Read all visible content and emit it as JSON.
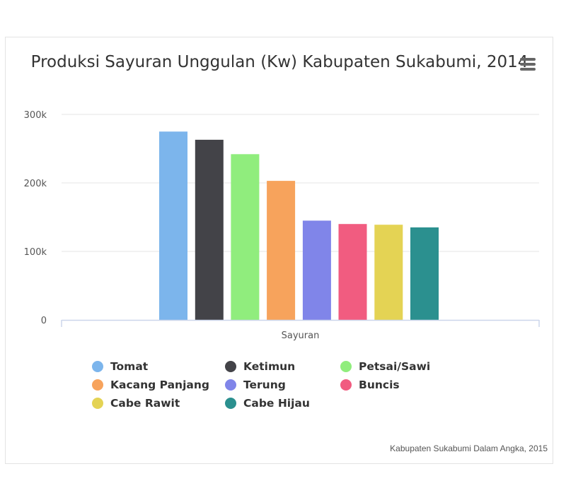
{
  "chart_data": {
    "type": "bar",
    "title": "Produksi Sayuran Unggulan (Kw) Kabupaten Sukabumi, 2014",
    "categories": [
      "Sayuran"
    ],
    "xlabel": "",
    "ylabel": "",
    "ylim": [
      0,
      300000
    ],
    "yticks": [
      {
        "value": 0,
        "label": "0"
      },
      {
        "value": 100000,
        "label": "100k"
      },
      {
        "value": 200000,
        "label": "200k"
      },
      {
        "value": 300000,
        "label": "300k"
      }
    ],
    "grid": true,
    "legend_position": "bottom",
    "series": [
      {
        "name": "Tomat",
        "values": [
          275000
        ],
        "color": "#7cb5ec"
      },
      {
        "name": "Ketimun",
        "values": [
          263000
        ],
        "color": "#434348"
      },
      {
        "name": "Petsai/Sawi",
        "values": [
          242000
        ],
        "color": "#90ed7d"
      },
      {
        "name": "Kacang Panjang",
        "values": [
          203000
        ],
        "color": "#f7a35c"
      },
      {
        "name": "Terung",
        "values": [
          145000
        ],
        "color": "#8085e9"
      },
      {
        "name": "Buncis",
        "values": [
          140000
        ],
        "color": "#f15c80"
      },
      {
        "name": "Cabe Rawit",
        "values": [
          139000
        ],
        "color": "#e4d354"
      },
      {
        "name": "Cabe Hijau",
        "values": [
          135000
        ],
        "color": "#2b908f"
      }
    ],
    "credits": "Kabupaten Sukabumi Dalam Angka, 2015"
  },
  "ui": {
    "menu_icon": "hamburger-menu-icon"
  }
}
